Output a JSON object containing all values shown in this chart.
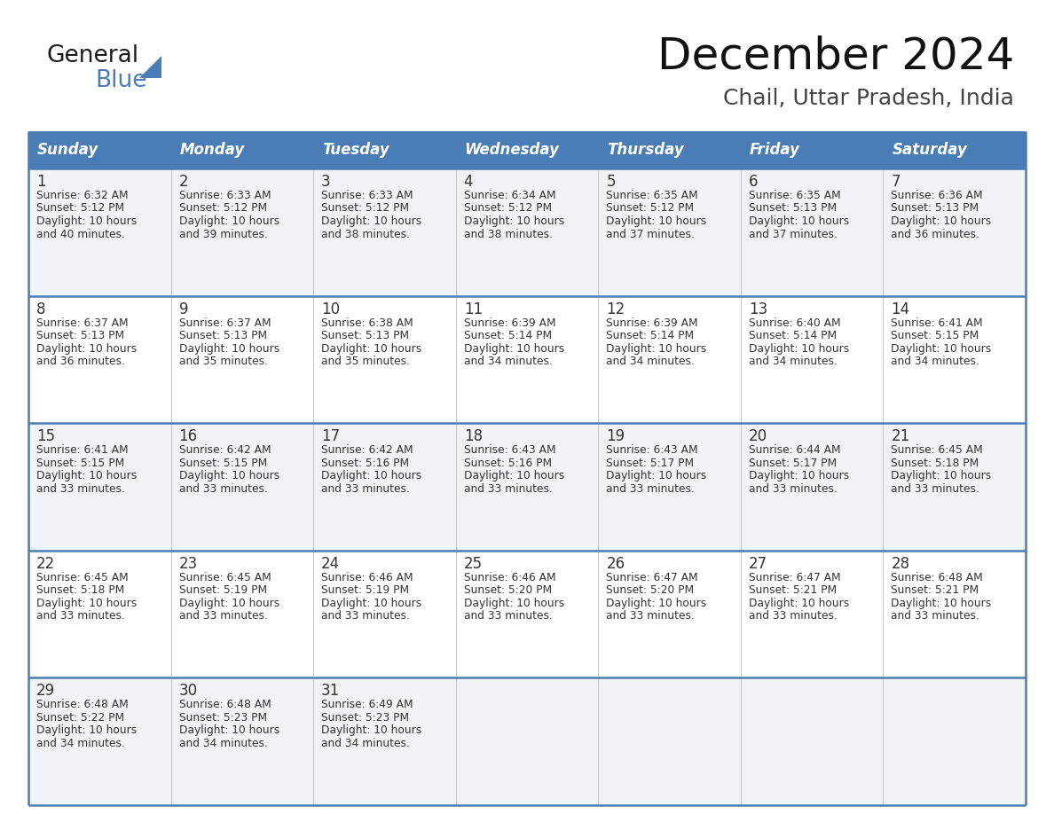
{
  "title": "December 2024",
  "subtitle": "Chail, Uttar Pradesh, India",
  "header_bg_color": "#4a7db5",
  "header_text_color": "#ffffff",
  "row_bg_odd": "#f0f4f8",
  "row_bg_even": "#ffffff",
  "text_color": "#333333",
  "days_of_week": [
    "Sunday",
    "Monday",
    "Tuesday",
    "Wednesday",
    "Thursday",
    "Friday",
    "Saturday"
  ],
  "calendar_data": [
    [
      {
        "day": 1,
        "sunrise": "6:32 AM",
        "sunset": "5:12 PM",
        "daylight": "10 hours and 40 minutes"
      },
      {
        "day": 2,
        "sunrise": "6:33 AM",
        "sunset": "5:12 PM",
        "daylight": "10 hours and 39 minutes"
      },
      {
        "day": 3,
        "sunrise": "6:33 AM",
        "sunset": "5:12 PM",
        "daylight": "10 hours and 38 minutes"
      },
      {
        "day": 4,
        "sunrise": "6:34 AM",
        "sunset": "5:12 PM",
        "daylight": "10 hours and 38 minutes"
      },
      {
        "day": 5,
        "sunrise": "6:35 AM",
        "sunset": "5:12 PM",
        "daylight": "10 hours and 37 minutes"
      },
      {
        "day": 6,
        "sunrise": "6:35 AM",
        "sunset": "5:13 PM",
        "daylight": "10 hours and 37 minutes"
      },
      {
        "day": 7,
        "sunrise": "6:36 AM",
        "sunset": "5:13 PM",
        "daylight": "10 hours and 36 minutes"
      }
    ],
    [
      {
        "day": 8,
        "sunrise": "6:37 AM",
        "sunset": "5:13 PM",
        "daylight": "10 hours and 36 minutes"
      },
      {
        "day": 9,
        "sunrise": "6:37 AM",
        "sunset": "5:13 PM",
        "daylight": "10 hours and 35 minutes"
      },
      {
        "day": 10,
        "sunrise": "6:38 AM",
        "sunset": "5:13 PM",
        "daylight": "10 hours and 35 minutes"
      },
      {
        "day": 11,
        "sunrise": "6:39 AM",
        "sunset": "5:14 PM",
        "daylight": "10 hours and 34 minutes"
      },
      {
        "day": 12,
        "sunrise": "6:39 AM",
        "sunset": "5:14 PM",
        "daylight": "10 hours and 34 minutes"
      },
      {
        "day": 13,
        "sunrise": "6:40 AM",
        "sunset": "5:14 PM",
        "daylight": "10 hours and 34 minutes"
      },
      {
        "day": 14,
        "sunrise": "6:41 AM",
        "sunset": "5:15 PM",
        "daylight": "10 hours and 34 minutes"
      }
    ],
    [
      {
        "day": 15,
        "sunrise": "6:41 AM",
        "sunset": "5:15 PM",
        "daylight": "10 hours and 33 minutes"
      },
      {
        "day": 16,
        "sunrise": "6:42 AM",
        "sunset": "5:15 PM",
        "daylight": "10 hours and 33 minutes"
      },
      {
        "day": 17,
        "sunrise": "6:42 AM",
        "sunset": "5:16 PM",
        "daylight": "10 hours and 33 minutes"
      },
      {
        "day": 18,
        "sunrise": "6:43 AM",
        "sunset": "5:16 PM",
        "daylight": "10 hours and 33 minutes"
      },
      {
        "day": 19,
        "sunrise": "6:43 AM",
        "sunset": "5:17 PM",
        "daylight": "10 hours and 33 minutes"
      },
      {
        "day": 20,
        "sunrise": "6:44 AM",
        "sunset": "5:17 PM",
        "daylight": "10 hours and 33 minutes"
      },
      {
        "day": 21,
        "sunrise": "6:45 AM",
        "sunset": "5:18 PM",
        "daylight": "10 hours and 33 minutes"
      }
    ],
    [
      {
        "day": 22,
        "sunrise": "6:45 AM",
        "sunset": "5:18 PM",
        "daylight": "10 hours and 33 minutes"
      },
      {
        "day": 23,
        "sunrise": "6:45 AM",
        "sunset": "5:19 PM",
        "daylight": "10 hours and 33 minutes"
      },
      {
        "day": 24,
        "sunrise": "6:46 AM",
        "sunset": "5:19 PM",
        "daylight": "10 hours and 33 minutes"
      },
      {
        "day": 25,
        "sunrise": "6:46 AM",
        "sunset": "5:20 PM",
        "daylight": "10 hours and 33 minutes"
      },
      {
        "day": 26,
        "sunrise": "6:47 AM",
        "sunset": "5:20 PM",
        "daylight": "10 hours and 33 minutes"
      },
      {
        "day": 27,
        "sunrise": "6:47 AM",
        "sunset": "5:21 PM",
        "daylight": "10 hours and 33 minutes"
      },
      {
        "day": 28,
        "sunrise": "6:48 AM",
        "sunset": "5:21 PM",
        "daylight": "10 hours and 33 minutes"
      }
    ],
    [
      {
        "day": 29,
        "sunrise": "6:48 AM",
        "sunset": "5:22 PM",
        "daylight": "10 hours and 34 minutes"
      },
      {
        "day": 30,
        "sunrise": "6:48 AM",
        "sunset": "5:23 PM",
        "daylight": "10 hours and 34 minutes"
      },
      {
        "day": 31,
        "sunrise": "6:49 AM",
        "sunset": "5:23 PM",
        "daylight": "10 hours and 34 minutes"
      },
      null,
      null,
      null,
      null
    ]
  ],
  "logo_text_general": "General",
  "logo_text_blue": "Blue",
  "logo_color_general": "#1a1a1a",
  "logo_color_blue": "#4a7db5",
  "logo_triangle_color": "#4a7db5",
  "fig_width": 11.88,
  "fig_height": 9.18,
  "dpi": 100
}
